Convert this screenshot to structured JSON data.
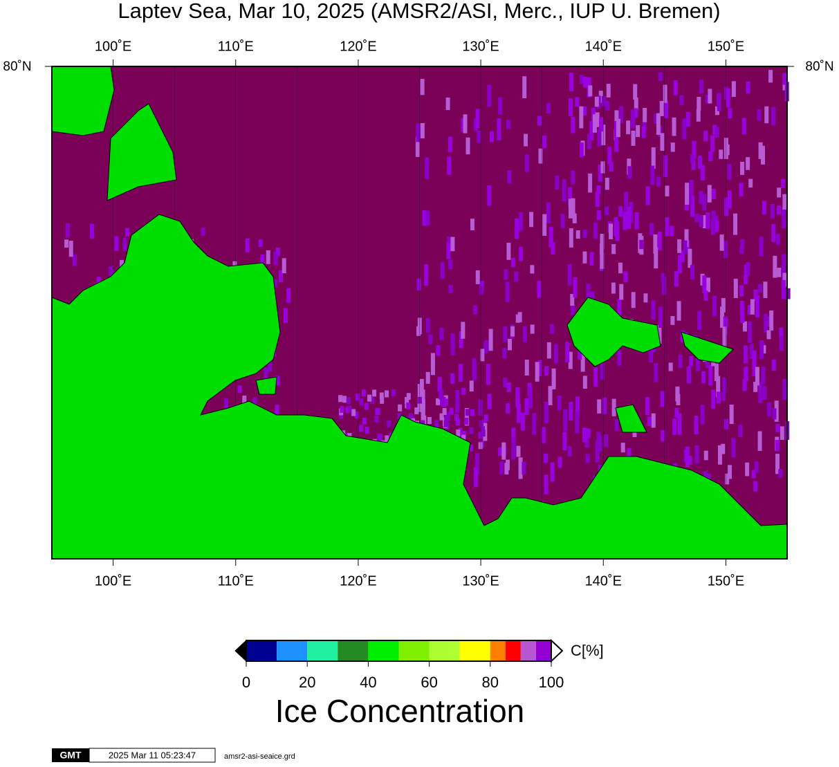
{
  "title": "Laptev Sea, Mar 10, 2025 (AMSR2/ASI, Merc., IUP U. Bremen)",
  "map": {
    "xlim": [
      95,
      155
    ],
    "xticks": [
      {
        "value": 100,
        "label": "100˚E"
      },
      {
        "value": 110,
        "label": "110˚E"
      },
      {
        "value": 120,
        "label": "120˚E"
      },
      {
        "value": 130,
        "label": "130˚E"
      },
      {
        "value": 140,
        "label": "140˚E"
      },
      {
        "value": 150,
        "label": "150˚E"
      }
    ],
    "xgrid": [
      100,
      105,
      110,
      115,
      120,
      125,
      130,
      135,
      140,
      145,
      150
    ],
    "lat_label": "80˚N"
  },
  "colorbar": {
    "bins": [
      0,
      10,
      20,
      30,
      40,
      50,
      60,
      70,
      80,
      85,
      90,
      95,
      100
    ],
    "colors": [
      "#000090",
      "#1e90ff",
      "#20f0a0",
      "#228b22",
      "#00ee00",
      "#7ff000",
      "#adff2f",
      "#ffff00",
      "#ff8000",
      "#ff0000",
      "#ba55d3",
      "#9400d3"
    ],
    "ticks": [
      0,
      20,
      40,
      60,
      80,
      100
    ],
    "unit": "C[%]",
    "title": "Ice Concentration"
  },
  "footer": {
    "logo": "GMT",
    "timestamp": "2025 Mar 11 05:23:47",
    "file": "amsr2-asi-seaice.grd"
  }
}
